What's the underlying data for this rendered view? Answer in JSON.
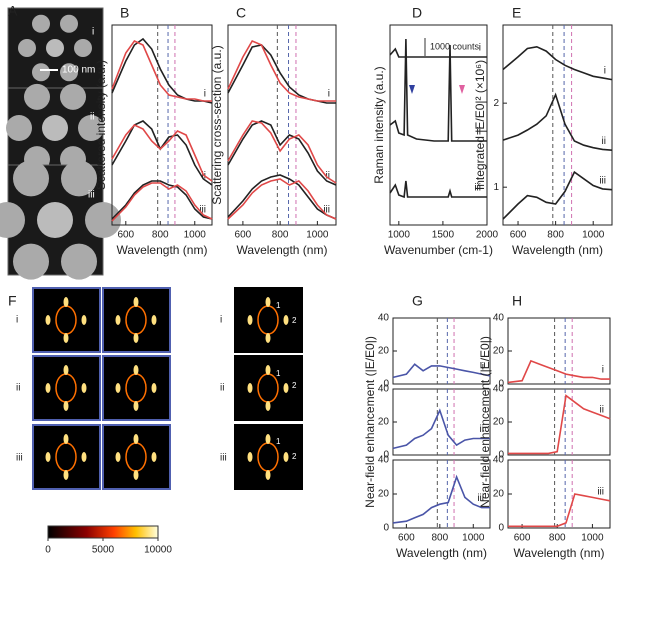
{
  "figure": {
    "panel_labels": [
      "A",
      "B",
      "C",
      "D",
      "E",
      "F",
      "G",
      "H"
    ],
    "panel_a_labels": [
      "i",
      "ii",
      "iii"
    ],
    "scale_bar": "100 nm",
    "raman_scale": "1000 counts",
    "f_row_labels": [
      "i",
      "ii",
      "iii"
    ],
    "f_row_labels_2": [
      "i",
      "ii",
      "iii"
    ],
    "f_spot_labels": [
      "1",
      "2",
      "1",
      "2",
      "1",
      "2"
    ],
    "reference_lines": [
      {
        "x": 785,
        "color": "#555555"
      },
      {
        "x": 845,
        "color": "#5566aa"
      },
      {
        "x": 885,
        "color": "#d070b0"
      }
    ]
  },
  "chart_data": [
    {
      "type": "line",
      "ref_lines": true,
      "xlabel": "Wavelength (nm)",
      "ylabel": "Scattered intensity (a.u.)",
      "xlim": [
        520,
        1100
      ],
      "xticks": [
        600,
        800,
        1000
      ],
      "x": [
        520,
        600,
        650,
        700,
        750,
        800,
        850,
        900,
        950,
        1000,
        1050,
        1100
      ],
      "series": [
        {
          "name": "i",
          "color": "#222222",
          "values": [
            0.66,
            0.82,
            0.9,
            0.93,
            0.88,
            0.78,
            0.7,
            0.65,
            0.63,
            0.62,
            0.62,
            0.61
          ]
        },
        {
          "color": "#e04848",
          "values": [
            0.68,
            0.86,
            0.92,
            0.9,
            0.8,
            0.7,
            0.65,
            0.64,
            0.63,
            0.63,
            0.62,
            0.62
          ]
        },
        {
          "name": "ii",
          "color": "#222222",
          "values": [
            0.3,
            0.42,
            0.5,
            0.52,
            0.48,
            0.38,
            0.44,
            0.45,
            0.4,
            0.3,
            0.23,
            0.2
          ]
        },
        {
          "color": "#e04848",
          "values": [
            0.33,
            0.45,
            0.5,
            0.48,
            0.42,
            0.38,
            0.42,
            0.47,
            0.45,
            0.35,
            0.25,
            0.22
          ]
        },
        {
          "name": "iii",
          "color": "#222222",
          "values": [
            0.03,
            0.1,
            0.16,
            0.2,
            0.22,
            0.22,
            0.2,
            0.19,
            0.15,
            0.08,
            0.04,
            0.03
          ]
        },
        {
          "color": "#e04848",
          "values": [
            0.02,
            0.09,
            0.15,
            0.19,
            0.21,
            0.21,
            0.18,
            0.2,
            0.17,
            0.1,
            0.05,
            0.03
          ]
        }
      ]
    },
    {
      "type": "line",
      "ref_lines": true,
      "xlabel": "Wavelength (nm)",
      "ylabel": "Scattering cross-section (a.u.)",
      "xlim": [
        520,
        1100
      ],
      "xticks": [
        600,
        800,
        1000
      ],
      "x": [
        520,
        600,
        650,
        700,
        750,
        800,
        850,
        900,
        950,
        1000,
        1050,
        1100
      ],
      "series": [
        {
          "name": "i",
          "color": "#222222",
          "values": [
            0.66,
            0.8,
            0.89,
            0.9,
            0.85,
            0.76,
            0.69,
            0.65,
            0.63,
            0.62,
            0.61,
            0.61
          ]
        },
        {
          "color": "#e04848",
          "values": [
            0.68,
            0.84,
            0.92,
            0.9,
            0.8,
            0.71,
            0.66,
            0.64,
            0.63,
            0.62,
            0.62,
            0.62
          ]
        },
        {
          "name": "ii",
          "color": "#222222",
          "values": [
            0.3,
            0.43,
            0.5,
            0.52,
            0.5,
            0.4,
            0.45,
            0.43,
            0.36,
            0.27,
            0.22,
            0.2
          ]
        },
        {
          "color": "#e04848",
          "values": [
            0.32,
            0.45,
            0.52,
            0.51,
            0.46,
            0.37,
            0.43,
            0.45,
            0.4,
            0.3,
            0.24,
            0.21
          ]
        },
        {
          "name": "iii",
          "color": "#222222",
          "values": [
            0.04,
            0.12,
            0.18,
            0.22,
            0.24,
            0.25,
            0.23,
            0.2,
            0.14,
            0.08,
            0.05,
            0.03
          ]
        },
        {
          "color": "#e04848",
          "values": [
            0.03,
            0.1,
            0.16,
            0.2,
            0.22,
            0.23,
            0.2,
            0.22,
            0.17,
            0.1,
            0.05,
            0.03
          ]
        }
      ]
    },
    {
      "type": "line",
      "xlabel": "Wavenumber (cm-1)",
      "ylabel": "Raman intensity (a.u.)",
      "xlim": [
        900,
        2000
      ],
      "xticks": [
        1000,
        1500,
        2000
      ],
      "x": [
        900,
        960,
        1000,
        1060,
        1080,
        1100,
        1200,
        1400,
        1560,
        1580,
        1600,
        1800,
        2000
      ],
      "series": [
        {
          "name": "i",
          "color": "#222222",
          "values": [
            0.85,
            0.88,
            0.84,
            0.84,
            0.84,
            0.84,
            0.84,
            0.84,
            0.84,
            0.84,
            0.84,
            0.84,
            0.84
          ]
        },
        {
          "name": "ii",
          "color": "#222222",
          "values": [
            0.5,
            0.52,
            0.46,
            0.45,
            0.93,
            0.45,
            0.43,
            0.42,
            0.42,
            0.9,
            0.42,
            0.42,
            0.42
          ]
        },
        {
          "name": "iii",
          "color": "#222222",
          "values": [
            0.16,
            0.2,
            0.15,
            0.14,
            0.22,
            0.14,
            0.14,
            0.14,
            0.14,
            0.17,
            0.14,
            0.14,
            0.14
          ]
        }
      ]
    },
    {
      "type": "line",
      "ref_lines": true,
      "xlabel": "Wavelength (nm)",
      "ylabel": "Integrated |E/E0|² (×10⁶)",
      "xlim": [
        520,
        1100
      ],
      "xticks": [
        600,
        800,
        1000
      ],
      "ylim": [
        0.55,
        2.93
      ],
      "yticks": [
        1,
        2
      ],
      "x": [
        520,
        600,
        650,
        700,
        750,
        800,
        850,
        900,
        950,
        1000,
        1050,
        1100
      ],
      "series": [
        {
          "name": "i",
          "color": "#222222",
          "values": [
            2.4,
            2.55,
            2.65,
            2.67,
            2.62,
            2.52,
            2.45,
            2.4,
            2.36,
            2.32,
            2.3,
            2.28
          ]
        },
        {
          "name": "ii",
          "color": "#222222",
          "values": [
            1.56,
            1.62,
            1.68,
            1.75,
            1.85,
            2.1,
            1.75,
            1.55,
            1.5,
            1.47,
            1.45,
            1.44
          ]
        },
        {
          "name": "iii",
          "color": "#222222",
          "values": [
            0.62,
            0.8,
            0.9,
            0.88,
            0.82,
            0.8,
            0.95,
            1.18,
            1.1,
            1.02,
            0.98,
            0.97
          ]
        }
      ]
    },
    {
      "type": "line",
      "ref_lines": true,
      "xlim": [
        520,
        1100
      ],
      "ylim": [
        0,
        40
      ],
      "yticks": [
        0,
        20,
        40
      ],
      "x": [
        520,
        600,
        650,
        700,
        750,
        800,
        850,
        900,
        950,
        1000,
        1050,
        1100
      ],
      "series": [
        {
          "name": "i",
          "color": "#4a55a8",
          "values": [
            4,
            6,
            12,
            8,
            11,
            11,
            10,
            9,
            8,
            7,
            6,
            5
          ]
        }
      ]
    },
    {
      "type": "line",
      "ref_lines": true,
      "ylabel": "Near-field enhancement (|E/E0|)",
      "xlim": [
        520,
        1100
      ],
      "ylim": [
        0,
        40
      ],
      "yticks": [
        0,
        20,
        40
      ],
      "x": [
        520,
        600,
        650,
        700,
        750,
        800,
        850,
        900,
        950,
        1000,
        1050,
        1100
      ],
      "series": [
        {
          "name": "ii",
          "color": "#4a55a8",
          "values": [
            4,
            6,
            10,
            12,
            16,
            27,
            12,
            6,
            9,
            10,
            10,
            10
          ]
        }
      ]
    },
    {
      "type": "line",
      "ref_lines": true,
      "xlabel": "Wavelength (nm)",
      "xlim": [
        520,
        1100
      ],
      "xticks": [
        600,
        800,
        1000
      ],
      "ylim": [
        0,
        40
      ],
      "yticks": [
        0,
        20,
        40
      ],
      "x": [
        520,
        600,
        650,
        700,
        750,
        800,
        850,
        900,
        950,
        1000,
        1050,
        1100
      ],
      "series": [
        {
          "name": "iii",
          "color": "#4a55a8",
          "values": [
            3,
            4,
            6,
            8,
            12,
            14,
            15,
            30,
            18,
            14,
            12,
            12
          ]
        }
      ]
    },
    {
      "type": "line",
      "ref_lines": true,
      "xlim": [
        520,
        1100
      ],
      "ylim": [
        0,
        40
      ],
      "yticks": [
        0,
        20,
        40
      ],
      "x": [
        520,
        600,
        650,
        700,
        750,
        800,
        850,
        900,
        950,
        1000,
        1050,
        1100
      ],
      "series": [
        {
          "name": "i",
          "color": "#e04848",
          "values": [
            1,
            2,
            14,
            12,
            10,
            8,
            6,
            5,
            4,
            4,
            3,
            3
          ]
        }
      ]
    },
    {
      "type": "line",
      "ref_lines": true,
      "ylabel": "Near-field enhancement (|E/E0|)",
      "xlim": [
        520,
        1100
      ],
      "ylim": [
        0,
        40
      ],
      "yticks": [
        0,
        20,
        40
      ],
      "x": [
        520,
        600,
        650,
        700,
        750,
        800,
        850,
        900,
        950,
        1000,
        1050,
        1100
      ],
      "series": [
        {
          "name": "ii",
          "color": "#e04848",
          "values": [
            1,
            1,
            1,
            1,
            1,
            2,
            36,
            32,
            28,
            26,
            24,
            22
          ]
        }
      ]
    },
    {
      "type": "line",
      "ref_lines": true,
      "xlabel": "Wavelength (nm)",
      "xlim": [
        520,
        1100
      ],
      "xticks": [
        600,
        800,
        1000
      ],
      "ylim": [
        0,
        40
      ],
      "yticks": [
        0,
        20,
        40
      ],
      "x": [
        520,
        600,
        650,
        700,
        750,
        800,
        850,
        900,
        950,
        1000,
        1050,
        1100
      ],
      "series": [
        {
          "name": "iii",
          "color": "#e04848",
          "values": [
            1,
            1,
            1,
            1,
            1,
            1,
            3,
            20,
            19,
            18,
            17,
            16
          ]
        }
      ]
    },
    {
      "type": "colorbar",
      "xlim": [
        0,
        10000
      ],
      "xticks": [
        0,
        5000,
        10000
      ]
    }
  ]
}
